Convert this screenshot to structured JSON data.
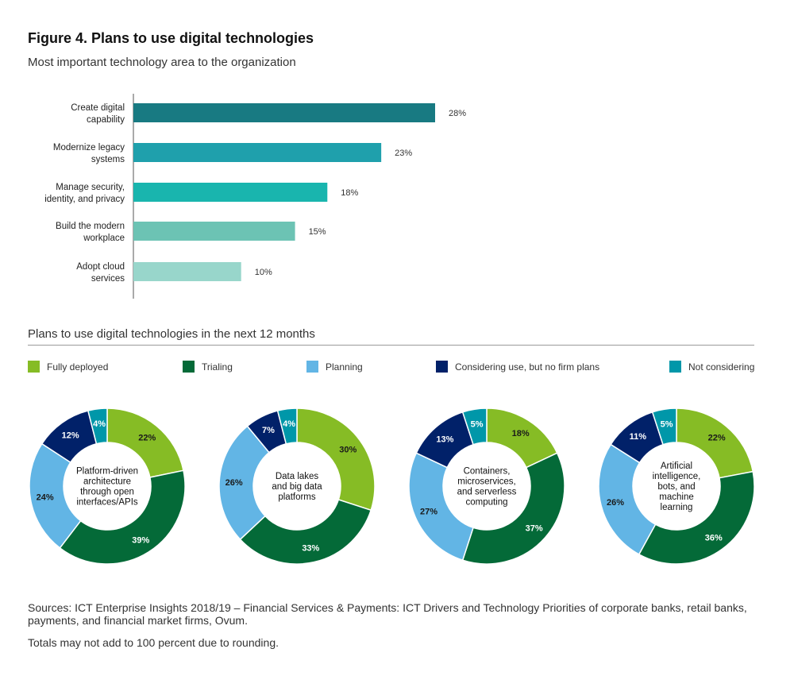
{
  "figure": {
    "title": "Figure 4. Plans to use digital technologies",
    "subtitle": "Most important technology area to the organization"
  },
  "chart_data": [
    {
      "type": "bar",
      "orientation": "horizontal",
      "title": "Most important technology area to the organization",
      "categories": [
        [
          "Create digital",
          "capability"
        ],
        [
          "Modernize legacy",
          "systems"
        ],
        [
          "Manage security,",
          "identity, and privacy"
        ],
        [
          "Build the modern",
          "workplace"
        ],
        [
          "Adopt cloud",
          "services"
        ]
      ],
      "values": [
        28,
        23,
        18,
        15,
        10
      ],
      "value_labels": [
        "28%",
        "23%",
        "18%",
        "15%",
        "10%"
      ],
      "colors": [
        "#187a82",
        "#1fa0ac",
        "#19b5ae",
        "#6cc3b4",
        "#98d6cb"
      ],
      "xlim": [
        0,
        30
      ]
    },
    {
      "type": "pie",
      "variant": "donut",
      "title": "Plans to use digital technologies in the next 12 months",
      "legend": [
        "Fully deployed",
        "Trialing",
        "Planning",
        "Considering use, but no firm plans",
        "Not considering"
      ],
      "colors": [
        "#86bc25",
        "#046a38",
        "#62b5e5",
        "#012169",
        "#0097a9"
      ],
      "donuts": [
        {
          "label": [
            "Platform-driven",
            "architecture",
            "through open",
            "interfaces/APIs"
          ],
          "values": [
            22,
            39,
            24,
            12,
            4
          ]
        },
        {
          "label": [
            "Data lakes",
            "and big data",
            "platforms"
          ],
          "values": [
            30,
            33,
            26,
            7,
            4
          ]
        },
        {
          "label": [
            "Containers,",
            "microservices,",
            "and serverless",
            "computing"
          ],
          "values": [
            18,
            37,
            27,
            13,
            5
          ]
        },
        {
          "label": [
            "Artificial",
            "intelligence,",
            "bots, and",
            "machine",
            "learning"
          ],
          "values": [
            22,
            36,
            26,
            11,
            5
          ]
        }
      ]
    }
  ],
  "donut_section": {
    "title": "Plans to use digital technologies in the next 12 months"
  },
  "footer": {
    "sources": "Sources: ICT Enterprise Insights 2018/19 – Financial Services & Payments: ICT Drivers and Technology Priorities of corporate banks, retail banks, payments, and financial market firms, Ovum.",
    "note": "Totals may not add to 100 percent due to rounding."
  }
}
